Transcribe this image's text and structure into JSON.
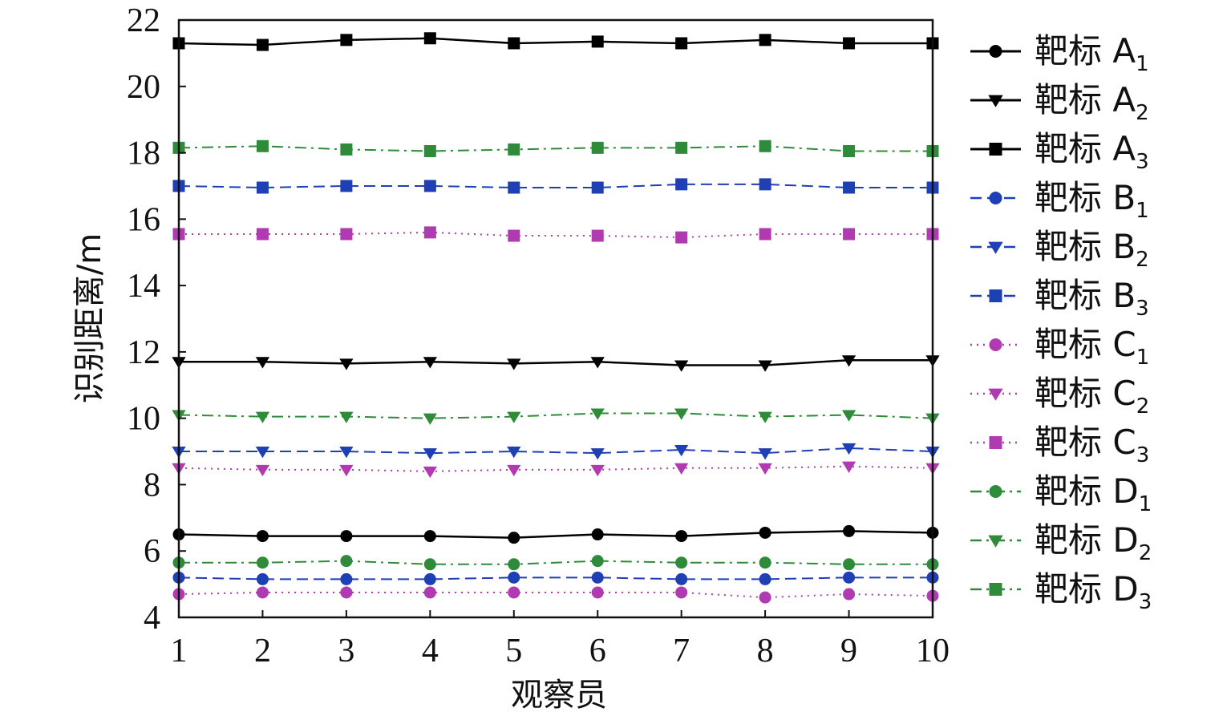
{
  "chart_data": {
    "type": "line",
    "xlabel": "观察员",
    "ylabel": "识别距离/m",
    "x": [
      1,
      2,
      3,
      4,
      5,
      6,
      7,
      8,
      9,
      10
    ],
    "xlim": [
      1,
      10
    ],
    "ylim": [
      4,
      22
    ],
    "yticks": [
      4,
      6,
      8,
      10,
      12,
      14,
      16,
      18,
      20,
      22
    ],
    "grid": false,
    "legend_position": "right",
    "series": [
      {
        "name": "靶标 A",
        "sub": "1",
        "color": "#000000",
        "marker": "circle",
        "dash": "solid",
        "values": [
          6.5,
          6.45,
          6.45,
          6.45,
          6.4,
          6.5,
          6.45,
          6.55,
          6.6,
          6.55
        ]
      },
      {
        "name": "靶标 A",
        "sub": "2",
        "color": "#000000",
        "marker": "triangle-down",
        "dash": "solid",
        "values": [
          11.7,
          11.7,
          11.65,
          11.7,
          11.65,
          11.7,
          11.6,
          11.6,
          11.75,
          11.75
        ]
      },
      {
        "name": "靶标 A",
        "sub": "3",
        "color": "#000000",
        "marker": "square",
        "dash": "solid",
        "values": [
          21.3,
          21.25,
          21.4,
          21.45,
          21.3,
          21.35,
          21.3,
          21.4,
          21.3,
          21.3
        ]
      },
      {
        "name": "靶标 B",
        "sub": "1",
        "color": "#1f3fb5",
        "marker": "circle",
        "dash": "dashed",
        "values": [
          5.2,
          5.15,
          5.15,
          5.15,
          5.2,
          5.2,
          5.15,
          5.15,
          5.2,
          5.2
        ]
      },
      {
        "name": "靶标 B",
        "sub": "2",
        "color": "#1f3fb5",
        "marker": "triangle-down",
        "dash": "dashed",
        "values": [
          9.0,
          9.0,
          9.0,
          8.95,
          9.0,
          8.95,
          9.05,
          8.95,
          9.1,
          9.0
        ]
      },
      {
        "name": "靶标 B",
        "sub": "3",
        "color": "#1f3fb5",
        "marker": "square",
        "dash": "dashed",
        "values": [
          17.0,
          16.95,
          17.0,
          17.0,
          16.95,
          16.95,
          17.05,
          17.05,
          16.95,
          16.95
        ]
      },
      {
        "name": "靶标 C",
        "sub": "1",
        "color": "#b03ab0",
        "marker": "circle",
        "dash": "dotted",
        "values": [
          4.7,
          4.75,
          4.75,
          4.75,
          4.75,
          4.75,
          4.75,
          4.6,
          4.7,
          4.65
        ]
      },
      {
        "name": "靶标 C",
        "sub": "2",
        "color": "#b03ab0",
        "marker": "triangle-down",
        "dash": "dotted",
        "values": [
          8.5,
          8.45,
          8.45,
          8.4,
          8.45,
          8.45,
          8.5,
          8.5,
          8.55,
          8.5
        ]
      },
      {
        "name": "靶标 C",
        "sub": "3",
        "color": "#b03ab0",
        "marker": "square",
        "dash": "dotted",
        "values": [
          15.55,
          15.55,
          15.55,
          15.6,
          15.5,
          15.5,
          15.45,
          15.55,
          15.55,
          15.55
        ]
      },
      {
        "name": "靶标 D",
        "sub": "1",
        "color": "#2e8b3a",
        "marker": "circle",
        "dash": "dashdot",
        "values": [
          5.65,
          5.65,
          5.7,
          5.6,
          5.6,
          5.7,
          5.65,
          5.65,
          5.6,
          5.6
        ]
      },
      {
        "name": "靶标 D",
        "sub": "2",
        "color": "#2e8b3a",
        "marker": "triangle-down",
        "dash": "dashdot",
        "values": [
          10.1,
          10.05,
          10.05,
          10.0,
          10.05,
          10.15,
          10.15,
          10.05,
          10.1,
          10.0
        ]
      },
      {
        "name": "靶标 D",
        "sub": "3",
        "color": "#2e8b3a",
        "marker": "square",
        "dash": "dashdot",
        "values": [
          18.15,
          18.2,
          18.1,
          18.05,
          18.1,
          18.15,
          18.15,
          18.2,
          18.05,
          18.05
        ]
      }
    ]
  }
}
